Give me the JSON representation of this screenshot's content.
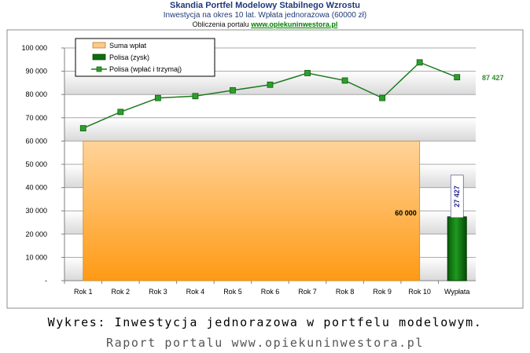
{
  "header": {
    "title": "Skandia Portfel Modelowy Stabilnego Wzrostu",
    "subtitle": "Inwestycja na okres 10 lat. Wpłata jednorazowa (60000 zł)",
    "credit_prefix": "Obliczenia portalu",
    "credit_link": "www.opiekuninwestora.pl"
  },
  "caption": {
    "line1": "Wykres: Inwestycja jednorazowa w portfelu modelowym.",
    "line2": "Raport portalu www.opiekuninwestora.pl"
  },
  "colors": {
    "line": "#1d7a1d",
    "marker": "#2aa02a",
    "area_top": "#ffd39a",
    "area_bottom": "#ff9a14",
    "bar_green": "#0a6e0a",
    "grid_band": "#dcdcdc",
    "value_label_blue": "#2a2a8a",
    "end_label": "#2e8b2e"
  },
  "chart_data": {
    "type": "line",
    "categories": [
      "Rok 1",
      "Rok 2",
      "Rok 3",
      "Rok 4",
      "Rok 5",
      "Rok 6",
      "Rok 7",
      "Rok 8",
      "Rok 9",
      "Rok 10",
      "Wypłata"
    ],
    "ylim": [
      0,
      100000
    ],
    "yticks": [
      0,
      10000,
      20000,
      30000,
      40000,
      50000,
      60000,
      70000,
      80000,
      90000,
      100000
    ],
    "ytick_labels": [
      "-",
      "10 000",
      "20 000",
      "30 000",
      "40 000",
      "50 000",
      "60 000",
      "70 000",
      "80 000",
      "90 000",
      "100 000"
    ],
    "legend": [
      "Suma wpłat",
      "Polisa (zysk)",
      "Polisa (wpłać i trzymaj)"
    ],
    "legend_position": "top-left",
    "series": [
      {
        "name": "Suma wpłat",
        "type": "area",
        "values": [
          60000,
          60000,
          60000,
          60000,
          60000,
          60000,
          60000,
          60000,
          60000,
          60000,
          60000
        ]
      },
      {
        "name": "Polisa (zysk)",
        "type": "bar",
        "category": "Wypłata",
        "value": 27427,
        "stack_base": 0
      },
      {
        "name": "Polisa (wpłać i trzymaj)",
        "type": "line",
        "values": [
          65500,
          72500,
          78500,
          79300,
          81800,
          84200,
          89200,
          86000,
          78500,
          93800,
          87427
        ]
      }
    ],
    "annotations": {
      "area_label": "60 000",
      "bar_label": "27 427",
      "end_label": "87 427"
    }
  }
}
